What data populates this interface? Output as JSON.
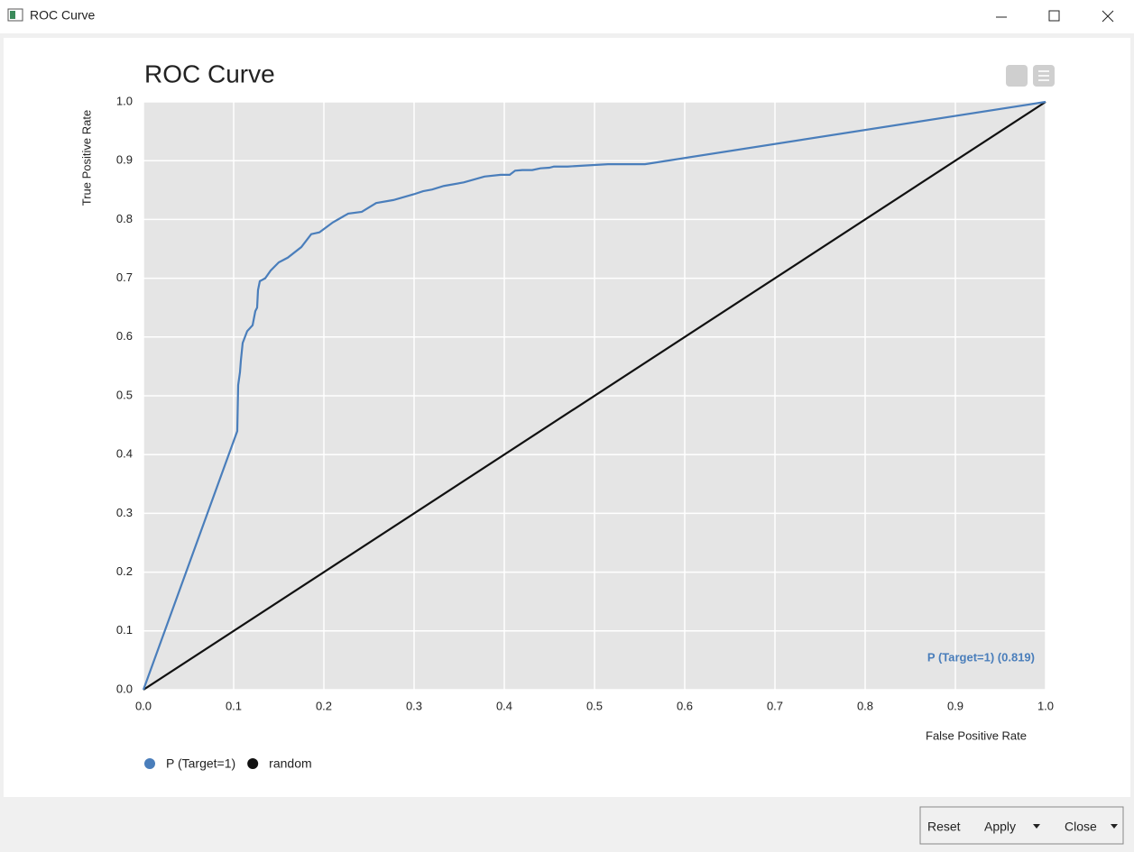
{
  "window": {
    "title": "ROC Curve",
    "buttons": [
      "Reset",
      "Apply",
      "Close"
    ]
  },
  "chart_data": {
    "type": "line",
    "title": "ROC Curve",
    "x_label": "False Positive Rate",
    "y_label": "True Positive Rate",
    "annotation": "P (Target=1) (0.819)",
    "xlim": [
      0,
      1
    ],
    "ylim": [
      0,
      1
    ],
    "xticks": [
      {
        "value": 0,
        "label": "0.0"
      },
      0.1,
      0.2,
      0.3,
      0.4,
      0.5,
      0.6,
      0.7,
      0.8,
      0.9,
      {
        "value": 1,
        "label": "1.0"
      }
    ],
    "yticks": [
      {
        "value": 0,
        "label": "0.0"
      },
      0.1,
      0.2,
      0.3,
      0.4,
      0.5,
      0.6,
      0.7,
      0.8,
      0.9,
      {
        "value": 1,
        "label": "1.0"
      }
    ],
    "grid": true,
    "legend": "bottom",
    "series": [
      {
        "name": "P (Target=1)",
        "color": "#4a7ebb",
        "x": [
          0,
          0.104,
          0.105,
          0.107,
          0.108,
          0.11,
          0.115,
          0.121,
          0.124,
          0.126,
          0.127,
          0.129,
          0.135,
          0.141,
          0.15,
          0.16,
          0.175,
          0.186,
          0.195,
          0.21,
          0.227,
          0.242,
          0.258,
          0.277,
          0.3,
          0.31,
          0.32,
          0.333,
          0.355,
          0.378,
          0.396,
          0.406,
          0.412,
          0.42,
          0.431,
          0.44,
          0.45,
          0.455,
          0.47,
          0.515,
          0.556,
          1
        ],
        "values": [
          0,
          0.44,
          0.518,
          0.54,
          0.56,
          0.59,
          0.61,
          0.62,
          0.644,
          0.65,
          0.68,
          0.695,
          0.7,
          0.713,
          0.727,
          0.735,
          0.753,
          0.775,
          0.778,
          0.795,
          0.81,
          0.813,
          0.828,
          0.833,
          0.843,
          0.848,
          0.851,
          0.857,
          0.863,
          0.873,
          0.876,
          0.876,
          0.883,
          0.884,
          0.884,
          0.887,
          0.888,
          0.89,
          0.89,
          0.894,
          0.894,
          1
        ]
      },
      {
        "name": "random",
        "color": "#111111",
        "x": [
          0,
          1
        ],
        "values": [
          0,
          1
        ]
      }
    ]
  }
}
